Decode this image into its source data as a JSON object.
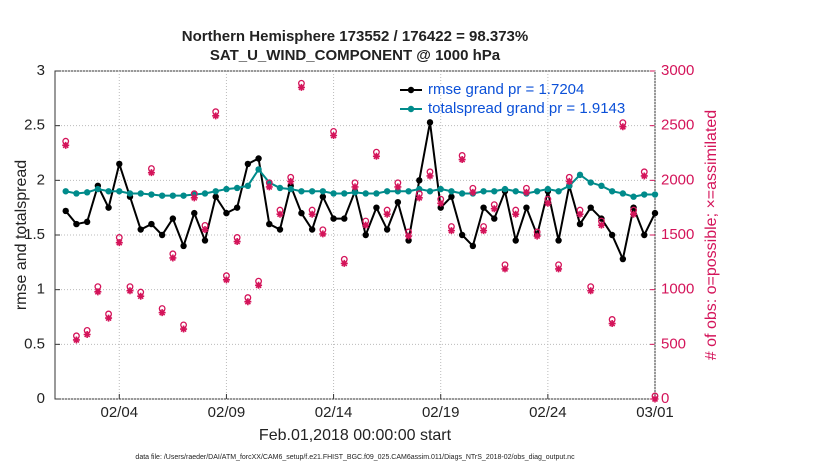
{
  "chart_data": {
    "type": "line",
    "title": "Northern Hemisphere 173552 / 176422 = 98.373%",
    "subtitle": "SAT_U_WIND_COMPONENT @ 1000 hPa",
    "xlabel": "Feb.01,2018 00:00:00 start",
    "ylabel": "rmse and totalspread",
    "y2label": "# of obs: o=possible; ×=assimilated",
    "footnote": "data file: /Users/raeder/DAI/ATM_forcXX/CAM6_setup/f.e21.FHIST_BGC.f09_025.CAM6assim.011/Diags_NTrS_2018-02/obs_diag_output.nc",
    "grid": true,
    "legend": "upper right",
    "xlim": [
      0,
      28
    ],
    "xticks": [
      {
        "value": 3,
        "label": "02/04"
      },
      {
        "value": 8,
        "label": "02/09"
      },
      {
        "value": 13,
        "label": "02/14"
      },
      {
        "value": 18,
        "label": "02/19"
      },
      {
        "value": 23,
        "label": "02/24"
      },
      {
        "value": 28,
        "label": "03/01"
      }
    ],
    "ylim": [
      0,
      3
    ],
    "yticks": [
      0,
      0.5,
      1,
      1.5,
      2,
      2.5,
      3
    ],
    "y2lim": [
      0,
      3000
    ],
    "y2ticks": [
      0,
      500,
      1000,
      1500,
      2000,
      2500,
      3000
    ],
    "x": [
      0.5,
      1,
      1.5,
      2,
      2.5,
      3,
      3.5,
      4,
      4.5,
      5,
      5.5,
      6,
      6.5,
      7,
      7.5,
      8,
      8.5,
      9,
      9.5,
      10,
      10.5,
      11,
      11.5,
      12,
      12.5,
      13,
      13.5,
      14,
      14.5,
      15,
      15.5,
      16,
      16.5,
      17,
      17.5,
      18,
      18.5,
      19,
      19.5,
      20,
      20.5,
      21,
      21.5,
      22,
      22.5,
      23,
      23.5,
      24,
      24.5,
      25,
      25.5,
      26,
      26.5,
      27,
      27.5,
      28
    ],
    "series": [
      {
        "name": "rmse grand pr = 1.7204",
        "color": "#000000",
        "marker": "dot",
        "values": [
          1.72,
          1.6,
          1.62,
          1.95,
          1.75,
          2.15,
          1.85,
          1.55,
          1.6,
          1.5,
          1.65,
          1.4,
          1.7,
          1.45,
          1.85,
          1.7,
          1.75,
          2.15,
          2.2,
          1.6,
          1.55,
          1.95,
          1.7,
          1.55,
          1.85,
          1.65,
          1.65,
          1.9,
          1.5,
          1.75,
          1.55,
          1.8,
          1.45,
          2.0,
          2.53,
          1.75,
          1.85,
          1.5,
          1.4,
          1.75,
          1.65,
          1.9,
          1.45,
          1.75,
          1.5,
          1.9,
          1.45,
          1.95,
          1.6,
          1.75,
          1.65,
          1.5,
          1.28,
          1.75,
          1.5,
          1.7
        ]
      },
      {
        "name": "totalspread grand pr = 1.9143",
        "color": "#008b8b",
        "marker": "dot",
        "values": [
          1.9,
          1.88,
          1.89,
          1.92,
          1.9,
          1.9,
          1.88,
          1.88,
          1.87,
          1.86,
          1.86,
          1.86,
          1.87,
          1.88,
          1.9,
          1.92,
          1.93,
          1.95,
          2.1,
          1.98,
          1.93,
          1.92,
          1.9,
          1.9,
          1.9,
          1.88,
          1.88,
          1.89,
          1.88,
          1.88,
          1.9,
          1.9,
          1.9,
          1.92,
          1.9,
          1.92,
          1.9,
          1.88,
          1.88,
          1.9,
          1.9,
          1.92,
          1.9,
          1.88,
          1.9,
          1.92,
          1.9,
          1.95,
          2.05,
          1.98,
          1.95,
          1.9,
          1.88,
          1.85,
          1.87,
          1.87
        ]
      },
      {
        "name": "possible",
        "color": "#d4145a",
        "marker": "circle",
        "axis": "y2",
        "values": [
          2330,
          550,
          600,
          1000,
          750,
          1450,
          1000,
          950,
          2080,
          800,
          1300,
          650,
          1850,
          1560,
          2600,
          1100,
          1450,
          900,
          1050,
          1950,
          1700,
          2000,
          2860,
          1700,
          1520,
          2420,
          1250,
          1950,
          1600,
          2230,
          1700,
          1950,
          1500,
          1850,
          2050,
          1800,
          1550,
          2200,
          1900,
          1550,
          1750,
          1200,
          1700,
          1900,
          1500,
          1800,
          1200,
          2000,
          1700,
          1000,
          1600,
          700,
          2500,
          1700,
          2050,
          0
        ]
      },
      {
        "name": "assimilated",
        "color": "#d4145a",
        "marker": "star",
        "axis": "y2",
        "values": [
          2320,
          540,
          590,
          980,
          740,
          1430,
          990,
          940,
          2070,
          790,
          1290,
          640,
          1840,
          1550,
          2590,
          1090,
          1440,
          890,
          1040,
          1940,
          1690,
          1990,
          2850,
          1690,
          1510,
          2410,
          1240,
          1940,
          1590,
          2220,
          1690,
          1940,
          1490,
          1840,
          2040,
          1790,
          1540,
          2190,
          1890,
          1540,
          1740,
          1190,
          1690,
          1890,
          1490,
          1790,
          1190,
          1990,
          1690,
          990,
          1590,
          690,
          2490,
          1690,
          2040,
          0
        ]
      }
    ]
  }
}
